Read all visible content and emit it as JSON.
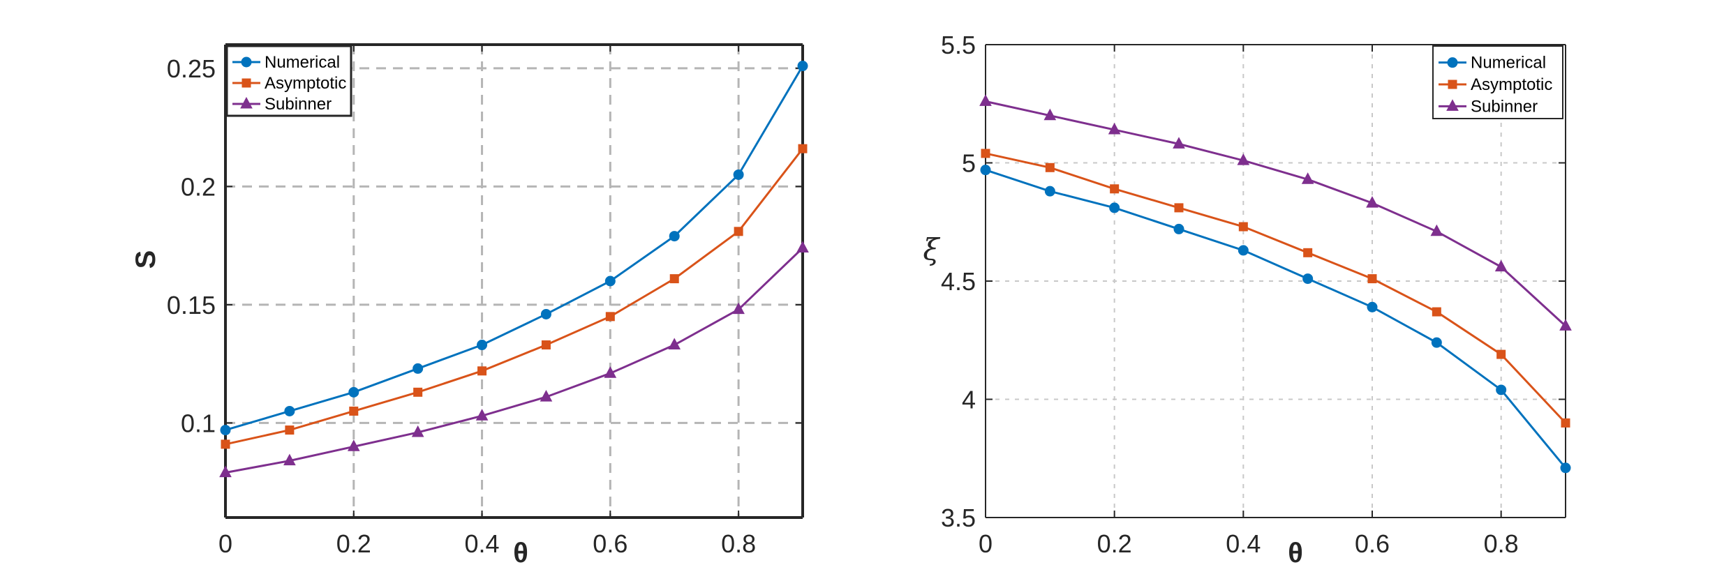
{
  "chart_data": [
    {
      "type": "line",
      "xlabel": "θ",
      "ylabel": "S",
      "xlim": [
        0,
        0.9
      ],
      "ylim": [
        0.06,
        0.26
      ],
      "xticks": [
        0,
        0.2,
        0.4,
        0.6,
        0.8
      ],
      "xtick_labels": [
        "0",
        "0.2",
        "0.4",
        "0.6",
        "0.8"
      ],
      "yticks": [
        0.1,
        0.15,
        0.2,
        0.25
      ],
      "ytick_labels": [
        "0.1",
        "0.15",
        "0.2",
        "0.25"
      ],
      "grid": true,
      "grid_style": "dashed",
      "legend_position": "top-left",
      "x": [
        0,
        0.1,
        0.2,
        0.3,
        0.4,
        0.5,
        0.6,
        0.7,
        0.8,
        0.9
      ],
      "series": [
        {
          "name": "Numerical",
          "color": "#0072BD",
          "marker": "circle",
          "values": [
            0.097,
            0.105,
            0.113,
            0.123,
            0.133,
            0.146,
            0.16,
            0.179,
            0.205,
            0.251
          ]
        },
        {
          "name": "Asymptotic",
          "color": "#D95319",
          "marker": "square",
          "values": [
            0.091,
            0.097,
            0.105,
            0.113,
            0.122,
            0.133,
            0.145,
            0.161,
            0.181,
            0.216
          ]
        },
        {
          "name": "Subinner",
          "color": "#7E2F8E",
          "marker": "triangle",
          "values": [
            0.079,
            0.084,
            0.09,
            0.096,
            0.103,
            0.111,
            0.121,
            0.133,
            0.148,
            0.174
          ]
        }
      ]
    },
    {
      "type": "line",
      "xlabel": "θ",
      "ylabel": "ξ",
      "xlim": [
        0,
        0.9
      ],
      "ylim": [
        3.5,
        5.5
      ],
      "xticks": [
        0,
        0.2,
        0.4,
        0.6,
        0.8
      ],
      "xtick_labels": [
        "0",
        "0.2",
        "0.4",
        "0.6",
        "0.8"
      ],
      "yticks": [
        3.5,
        4,
        4.5,
        5,
        5.5
      ],
      "ytick_labels": [
        "3.5",
        "4",
        "4.5",
        "5",
        "5.5"
      ],
      "grid": true,
      "grid_style": "dotted",
      "legend_position": "top-right",
      "x": [
        0,
        0.1,
        0.2,
        0.3,
        0.4,
        0.5,
        0.6,
        0.7,
        0.8,
        0.9
      ],
      "series": [
        {
          "name": "Numerical",
          "color": "#0072BD",
          "marker": "circle",
          "values": [
            4.97,
            4.88,
            4.81,
            4.72,
            4.63,
            4.51,
            4.39,
            4.24,
            4.04,
            3.71
          ]
        },
        {
          "name": "Asymptotic",
          "color": "#D95319",
          "marker": "square",
          "values": [
            5.04,
            4.98,
            4.89,
            4.81,
            4.73,
            4.62,
            4.51,
            4.37,
            4.19,
            3.9
          ]
        },
        {
          "name": "Subinner",
          "color": "#7E2F8E",
          "marker": "triangle",
          "values": [
            5.26,
            5.2,
            5.14,
            5.08,
            5.01,
            4.93,
            4.83,
            4.71,
            4.56,
            4.31
          ]
        }
      ]
    }
  ]
}
